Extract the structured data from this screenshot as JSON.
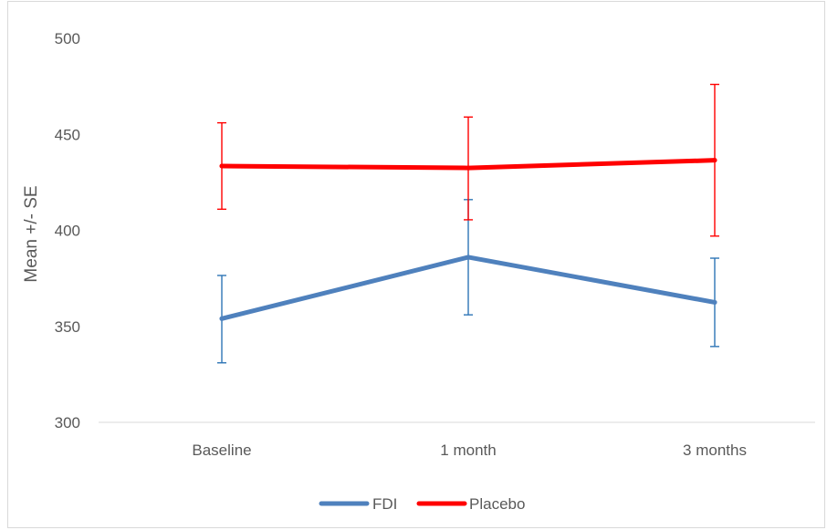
{
  "chart_data": {
    "type": "line",
    "title": "",
    "xlabel": "",
    "ylabel": "Mean +/- SE",
    "ylim": [
      300,
      500
    ],
    "yticks": [
      300,
      350,
      400,
      450,
      500
    ],
    "categories": [
      "Baseline",
      "1 month",
      "3 months"
    ],
    "grid": false,
    "legend_position": "bottom",
    "series": [
      {
        "name": "FDI",
        "color": "#4f81bd",
        "error_color": "#2e75b6",
        "values": [
          354,
          386,
          362.5
        ],
        "error_low": [
          331,
          356,
          339.5
        ],
        "error_high": [
          376.5,
          416,
          385.5
        ]
      },
      {
        "name": "Placebo",
        "color": "#ff0000",
        "error_color": "#ff0000",
        "values": [
          433.5,
          432.5,
          436.5
        ],
        "error_low": [
          411,
          405.5,
          397
        ],
        "error_high": [
          456,
          459,
          476
        ]
      }
    ]
  }
}
